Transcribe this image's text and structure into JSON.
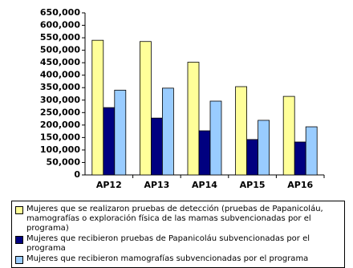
{
  "chart_data": {
    "type": "bar",
    "categories": [
      "AP12",
      "AP13",
      "AP14",
      "AP15",
      "AP16"
    ],
    "series": [
      {
        "name": "Mujeres que se realizaron pruebas de detección (pruebas de Papanicoláu, mamografías o exploración física de las mamas subvencionadas por el programa)",
        "color": "#ffff99",
        "values": [
          540000,
          535000,
          452000,
          354000,
          315000
        ]
      },
      {
        "name": "Mujeres que recibieron pruebas de Papanicoláu subvencionadas por el programa",
        "color": "#000080",
        "values": [
          270000,
          228000,
          177000,
          142000,
          132000
        ]
      },
      {
        "name": "Mujeres que recibieron mamografías subvencionadas por el programa",
        "color": "#99ccff",
        "values": [
          340000,
          348000,
          296000,
          219000,
          193000
        ]
      }
    ],
    "ylim": [
      0,
      650000
    ],
    "yticks": [
      0,
      {
        "value": 50000,
        "label": "50,000"
      },
      {
        "value": 100000,
        "label": "100,000"
      },
      {
        "value": 150000,
        "label": "150,000"
      },
      {
        "value": 200000,
        "label": "200,000"
      },
      {
        "value": 250000,
        "label": "250,000"
      },
      {
        "value": 300000,
        "label": "300,000"
      },
      {
        "value": 350000,
        "label": "350,000"
      },
      {
        "value": 400000,
        "label": "400,000"
      },
      {
        "value": 450000,
        "label": "450,000"
      },
      {
        "value": 500000,
        "label": "500,000"
      },
      {
        "value": 550000,
        "label": "550,000"
      },
      {
        "value": 600000,
        "label": "600,000"
      },
      {
        "value": 650000,
        "label": "650,000"
      }
    ],
    "legend": "bottom"
  }
}
